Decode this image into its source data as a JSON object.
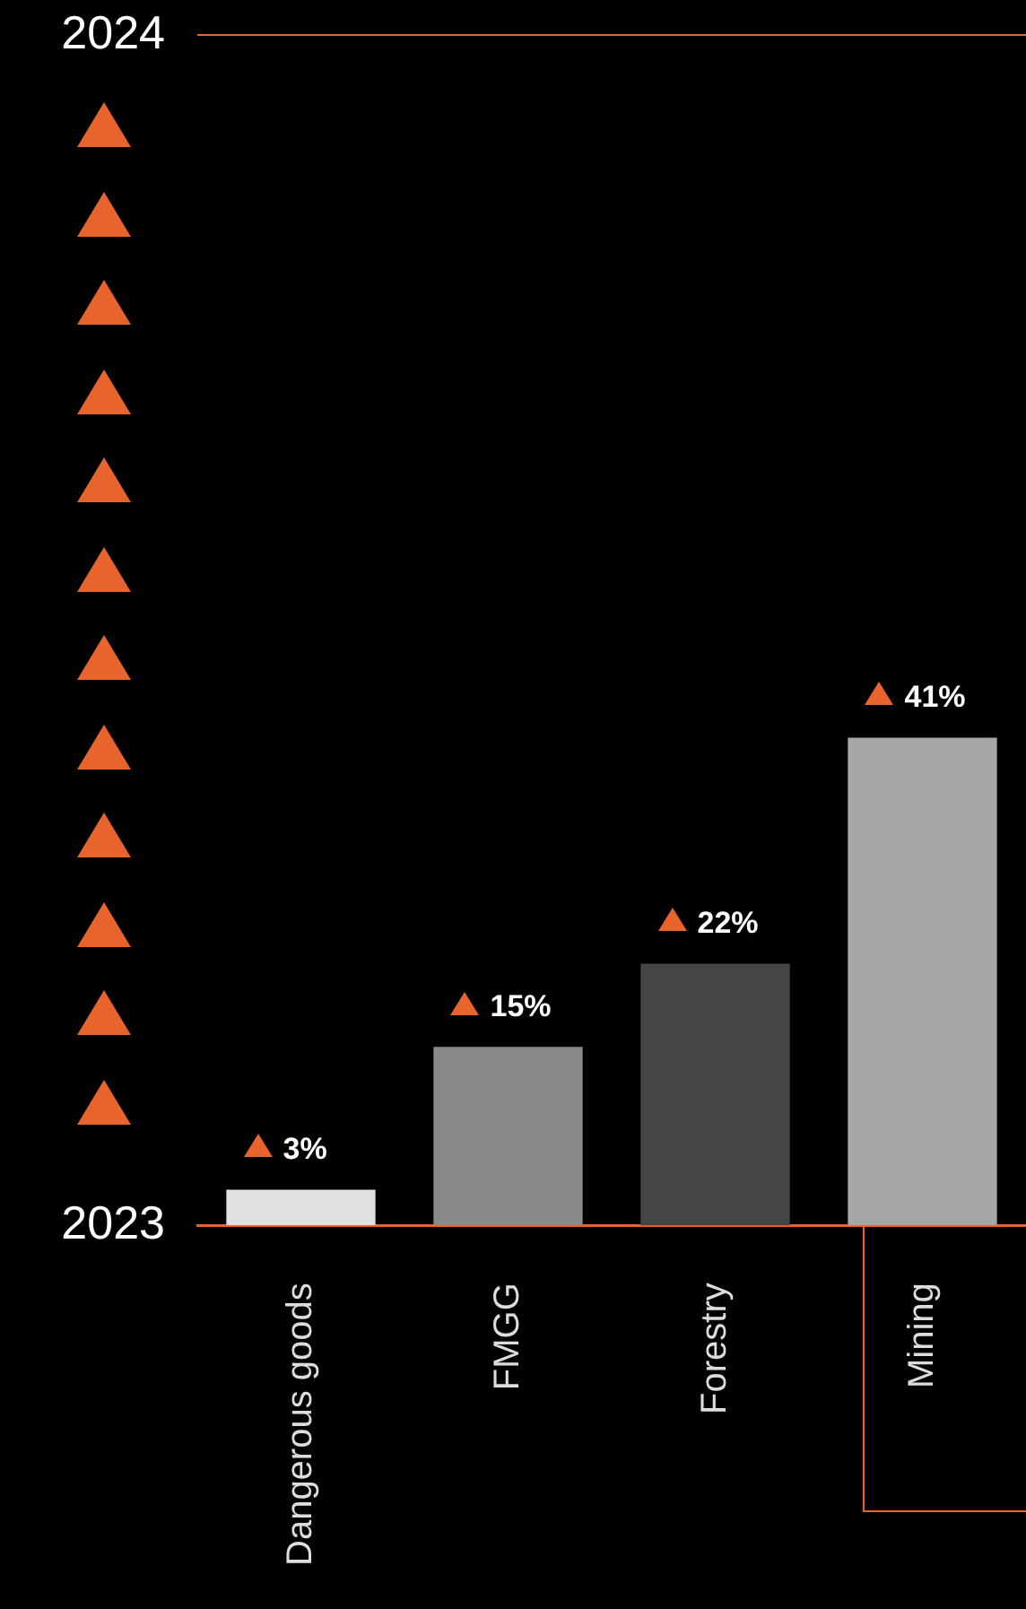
{
  "chart_data": {
    "type": "bar",
    "categories": [
      "Dangerous goods",
      "FMGG",
      "Forestry",
      "Mining"
    ],
    "values": [
      3,
      15,
      22,
      41
    ],
    "colors": [
      "#e0e0e0",
      "#8a8a8a",
      "#454545",
      "#a6a6a6"
    ],
    "value_labels": [
      "3%",
      "15%",
      "22%",
      "41%"
    ],
    "ylim": [
      0,
      100
    ],
    "annotations": [
      "2024",
      "2023"
    ],
    "legend": false
  }
}
